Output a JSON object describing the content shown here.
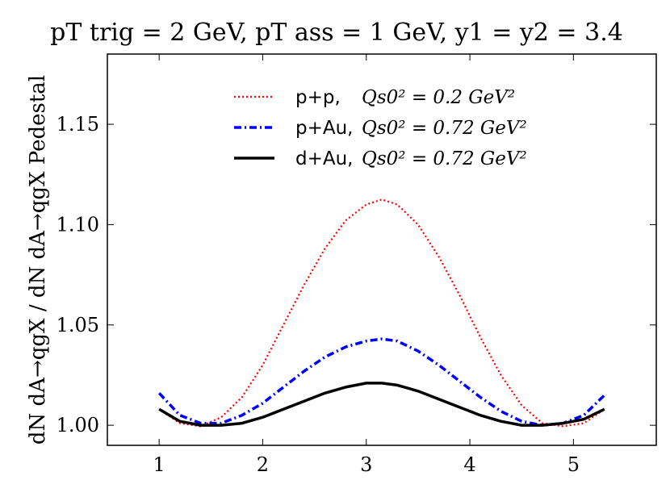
{
  "chart_data": {
    "type": "line",
    "title": "p_T^trig = 2 GeV, p_T^ass = 1 GeV, y_1 = y_2 = 3.4",
    "title_display": "pT trig = 2 GeV, pT ass = 1 GeV, y1 = y2 = 3.4",
    "xlabel": "",
    "ylabel": "dN^{dA→qgX}/dN^{dA→qgX}_{Pedestal}",
    "ylabel_display": "dN dA→qgX / dN dA→qgX Pedestal",
    "xlim": [
      0.5,
      5.8
    ],
    "ylim": [
      0.99,
      1.185
    ],
    "xticks": [
      1,
      2,
      3,
      4,
      5
    ],
    "xtick_labels": [
      "1",
      "2",
      "3",
      "4",
      "5"
    ],
    "yticks": [
      1.0,
      1.05,
      1.1,
      1.15
    ],
    "ytick_labels": [
      "1.00",
      "1.05",
      "1.10",
      "1.15"
    ],
    "legend_position": "top-center",
    "series": [
      {
        "name": "p+p",
        "legend_label": "p+p,",
        "legend_param": "Q_s0^2 = 0.2 GeV^2",
        "legend_param_display": "Qs0² = 0.2 GeV²",
        "color": "#ff0000",
        "style": "dotted",
        "x": [
          1.0,
          1.2,
          1.4,
          1.6,
          1.8,
          2.0,
          2.2,
          2.4,
          2.6,
          2.8,
          3.0,
          3.15,
          3.3,
          3.5,
          3.7,
          3.9,
          4.1,
          4.3,
          4.5,
          4.7,
          4.9,
          5.1,
          5.3
        ],
        "values": [
          1.008,
          1.001,
          0.9995,
          1.004,
          1.014,
          1.03,
          1.05,
          1.07,
          1.088,
          1.102,
          1.11,
          1.1125,
          1.11,
          1.1,
          1.084,
          1.065,
          1.044,
          1.025,
          1.01,
          1.001,
          0.9995,
          1.001,
          1.008
        ]
      },
      {
        "name": "p+Au",
        "legend_label": "p+Au,",
        "legend_param": "Q_s0^2 = 0.72 GeV^2",
        "legend_param_display": "Qs0² = 0.72 GeV²",
        "color": "#0000ff",
        "style": "dashdot",
        "x": [
          1.0,
          1.2,
          1.4,
          1.6,
          1.8,
          2.0,
          2.2,
          2.4,
          2.6,
          2.8,
          3.0,
          3.15,
          3.3,
          3.5,
          3.7,
          3.9,
          4.1,
          4.3,
          4.5,
          4.7,
          4.9,
          5.1,
          5.3
        ],
        "values": [
          1.016,
          1.005,
          1.001,
          1.001,
          1.005,
          1.011,
          1.019,
          1.027,
          1.034,
          1.039,
          1.042,
          1.043,
          1.042,
          1.037,
          1.03,
          1.022,
          1.014,
          1.007,
          1.002,
          1.0,
          1.001,
          1.005,
          1.015
        ]
      },
      {
        "name": "d+Au",
        "legend_label": "d+Au,",
        "legend_param": "Q_s0^2 = 0.72 GeV^2",
        "legend_param_display": "Qs0² = 0.72 GeV²",
        "color": "#000000",
        "style": "solid",
        "x": [
          1.0,
          1.2,
          1.4,
          1.6,
          1.8,
          2.0,
          2.2,
          2.4,
          2.6,
          2.8,
          3.0,
          3.15,
          3.3,
          3.5,
          3.7,
          3.9,
          4.1,
          4.3,
          4.5,
          4.7,
          4.9,
          5.1,
          5.3
        ],
        "values": [
          1.008,
          1.002,
          1.0,
          1.0,
          1.001,
          1.004,
          1.008,
          1.012,
          1.016,
          1.019,
          1.021,
          1.021,
          1.02,
          1.017,
          1.013,
          1.009,
          1.005,
          1.002,
          1.0,
          1.0,
          1.001,
          1.003,
          1.008
        ]
      }
    ]
  }
}
